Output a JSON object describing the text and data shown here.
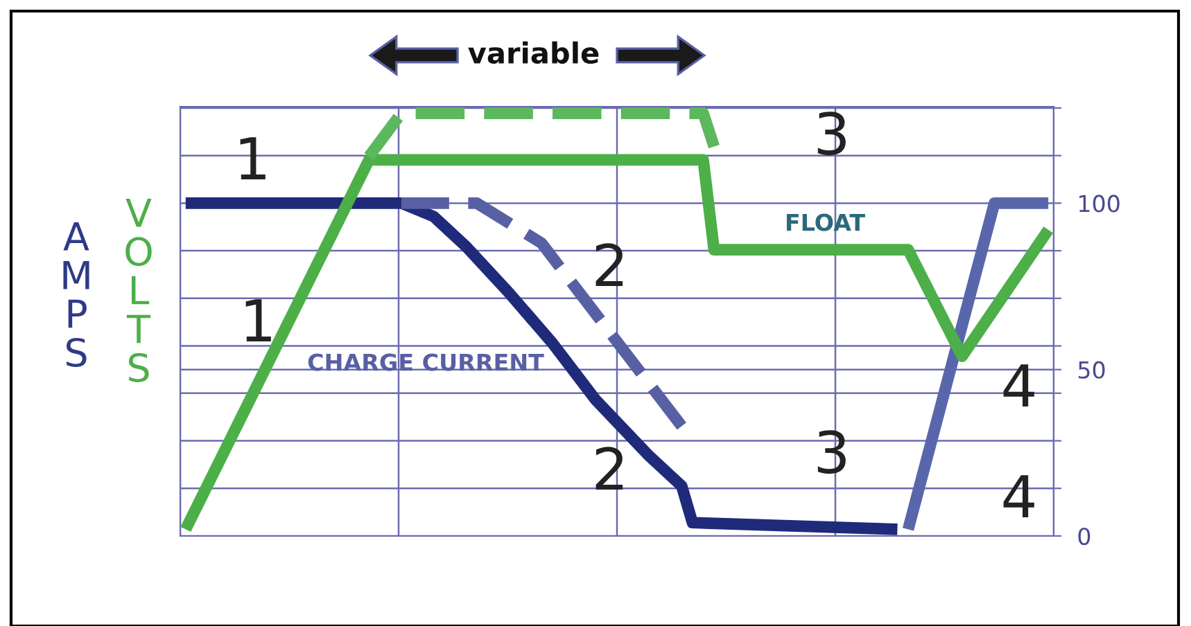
{
  "chart_data": {
    "type": "line",
    "categories": [
      null,
      null,
      null,
      null,
      null,
      null,
      null,
      null,
      null,
      null,
      null,
      null,
      null,
      null,
      null,
      null,
      null,
      null,
      null,
      null,
      null,
      null,
      null,
      null,
      null,
      null,
      null,
      null,
      null,
      null,
      null,
      null,
      null,
      null,
      null,
      null,
      null,
      null,
      null,
      null,
      null,
      null,
      null,
      null,
      null,
      null,
      null,
      null,
      null,
      null,
      null,
      null,
      null,
      null,
      null,
      null,
      null,
      null,
      null,
      null,
      null,
      null,
      null,
      null,
      null,
      null,
      null,
      null,
      null,
      null,
      null,
      null,
      null,
      null,
      null,
      null,
      null,
      null,
      null,
      null,
      null
    ],
    "ylim": [
      0,
      129
    ],
    "yticks": [
      0,
      {
        "value": 14.3,
        "label": null
      },
      {
        "value": 28.6,
        "label": null
      },
      {
        "value": 42.9,
        "label": null
      },
      50,
      {
        "value": 57.1,
        "label": null
      },
      {
        "value": 71.4,
        "label": null
      },
      {
        "value": 85.7,
        "label": null
      },
      100,
      {
        "value": 114.3,
        "label": null
      },
      {
        "value": 128.6,
        "label": null
      }
    ],
    "tick_labels": "y",
    "grid": true,
    "marker": "none",
    "series": [
      {
        "color": "#1f2a7a",
        "line_style": "solid",
        "values": [
          100,
          null,
          null,
          null,
          null,
          null,
          null,
          null,
          null,
          null,
          null,
          null,
          null,
          null,
          null,
          null,
          null,
          null,
          null,
          null,
          100,
          null,
          null,
          96,
          null,
          null,
          87,
          null,
          null,
          null,
          73,
          null,
          null,
          null,
          58,
          null,
          null,
          null,
          41,
          null,
          null,
          null,
          null,
          24,
          null,
          null,
          15,
          4,
          null,
          null,
          null,
          null,
          null,
          null,
          null,
          null,
          null,
          null,
          null,
          null,
          null,
          null,
          null,
          null,
          null,
          null,
          2,
          null,
          null,
          null,
          null,
          null,
          null,
          null,
          null,
          null,
          null,
          null,
          null,
          null,
          null
        ]
      },
      {
        "color": "#5860a4",
        "line_style": "dashed",
        "values": [
          null,
          null,
          null,
          null,
          null,
          null,
          null,
          null,
          null,
          null,
          null,
          null,
          null,
          null,
          null,
          null,
          null,
          null,
          null,
          null,
          100,
          null,
          null,
          null,
          null,
          null,
          null,
          100,
          null,
          null,
          null,
          null,
          null,
          88,
          null,
          null,
          null,
          null,
          null,
          null,
          null,
          null,
          null,
          null,
          null,
          null,
          33,
          null,
          null,
          null,
          null,
          null,
          null,
          null,
          null,
          null,
          null,
          null,
          null,
          null,
          null,
          null,
          null,
          null,
          null,
          null,
          null,
          null,
          null,
          null,
          null,
          null,
          null,
          null,
          null,
          null,
          null,
          null,
          null,
          null,
          null
        ]
      },
      {
        "color": "#5a66ab",
        "line_style": "solid",
        "values": [
          null,
          null,
          null,
          null,
          null,
          null,
          null,
          null,
          null,
          null,
          null,
          null,
          null,
          null,
          null,
          null,
          null,
          null,
          null,
          null,
          null,
          null,
          null,
          null,
          null,
          null,
          null,
          null,
          null,
          null,
          null,
          null,
          null,
          null,
          null,
          null,
          null,
          null,
          null,
          null,
          null,
          null,
          null,
          null,
          null,
          null,
          null,
          null,
          null,
          null,
          null,
          null,
          null,
          null,
          null,
          null,
          null,
          null,
          null,
          null,
          null,
          null,
          null,
          null,
          null,
          null,
          null,
          2,
          null,
          null,
          null,
          null,
          null,
          null,
          null,
          100,
          null,
          null,
          null,
          null,
          100
        ]
      },
      {
        "color": "#4caf48",
        "line_style": "solid",
        "values": [
          2,
          null,
          null,
          null,
          null,
          null,
          null,
          null,
          null,
          null,
          null,
          null,
          null,
          null,
          null,
          null,
          null,
          113,
          null,
          null,
          null,
          null,
          null,
          null,
          null,
          null,
          null,
          null,
          null,
          null,
          null,
          null,
          null,
          null,
          null,
          null,
          null,
          null,
          null,
          null,
          null,
          null,
          null,
          null,
          null,
          null,
          null,
          null,
          113,
          86,
          null,
          null,
          null,
          null,
          null,
          null,
          null,
          null,
          null,
          null,
          null,
          null,
          null,
          null,
          null,
          null,
          null,
          86,
          null,
          null,
          null,
          null,
          54,
          null,
          null,
          null,
          null,
          null,
          null,
          null,
          92
        ]
      },
      {
        "color": "#5cb85c",
        "line_style": "dashed",
        "values": [
          null,
          null,
          null,
          null,
          null,
          null,
          null,
          null,
          null,
          null,
          null,
          null,
          null,
          null,
          null,
          null,
          null,
          114,
          null,
          null,
          127,
          null,
          null,
          null,
          null,
          null,
          null,
          null,
          null,
          null,
          null,
          null,
          null,
          null,
          null,
          null,
          null,
          null,
          null,
          null,
          null,
          null,
          null,
          null,
          null,
          null,
          null,
          null,
          127,
          117,
          null,
          null,
          null,
          null,
          null,
          null,
          null,
          null,
          null,
          null,
          null,
          null,
          null,
          null,
          null,
          null,
          null,
          null,
          null,
          null,
          null,
          null,
          null,
          null,
          null,
          null,
          null,
          null,
          null,
          null,
          null
        ]
      }
    ],
    "annotations": [
      "variable",
      "AMPS",
      "VOLTS",
      "1",
      "1",
      "2",
      "2",
      "3",
      "3",
      "4",
      "4",
      "CHARGE CURRENT",
      "FLOAT"
    ]
  }
}
